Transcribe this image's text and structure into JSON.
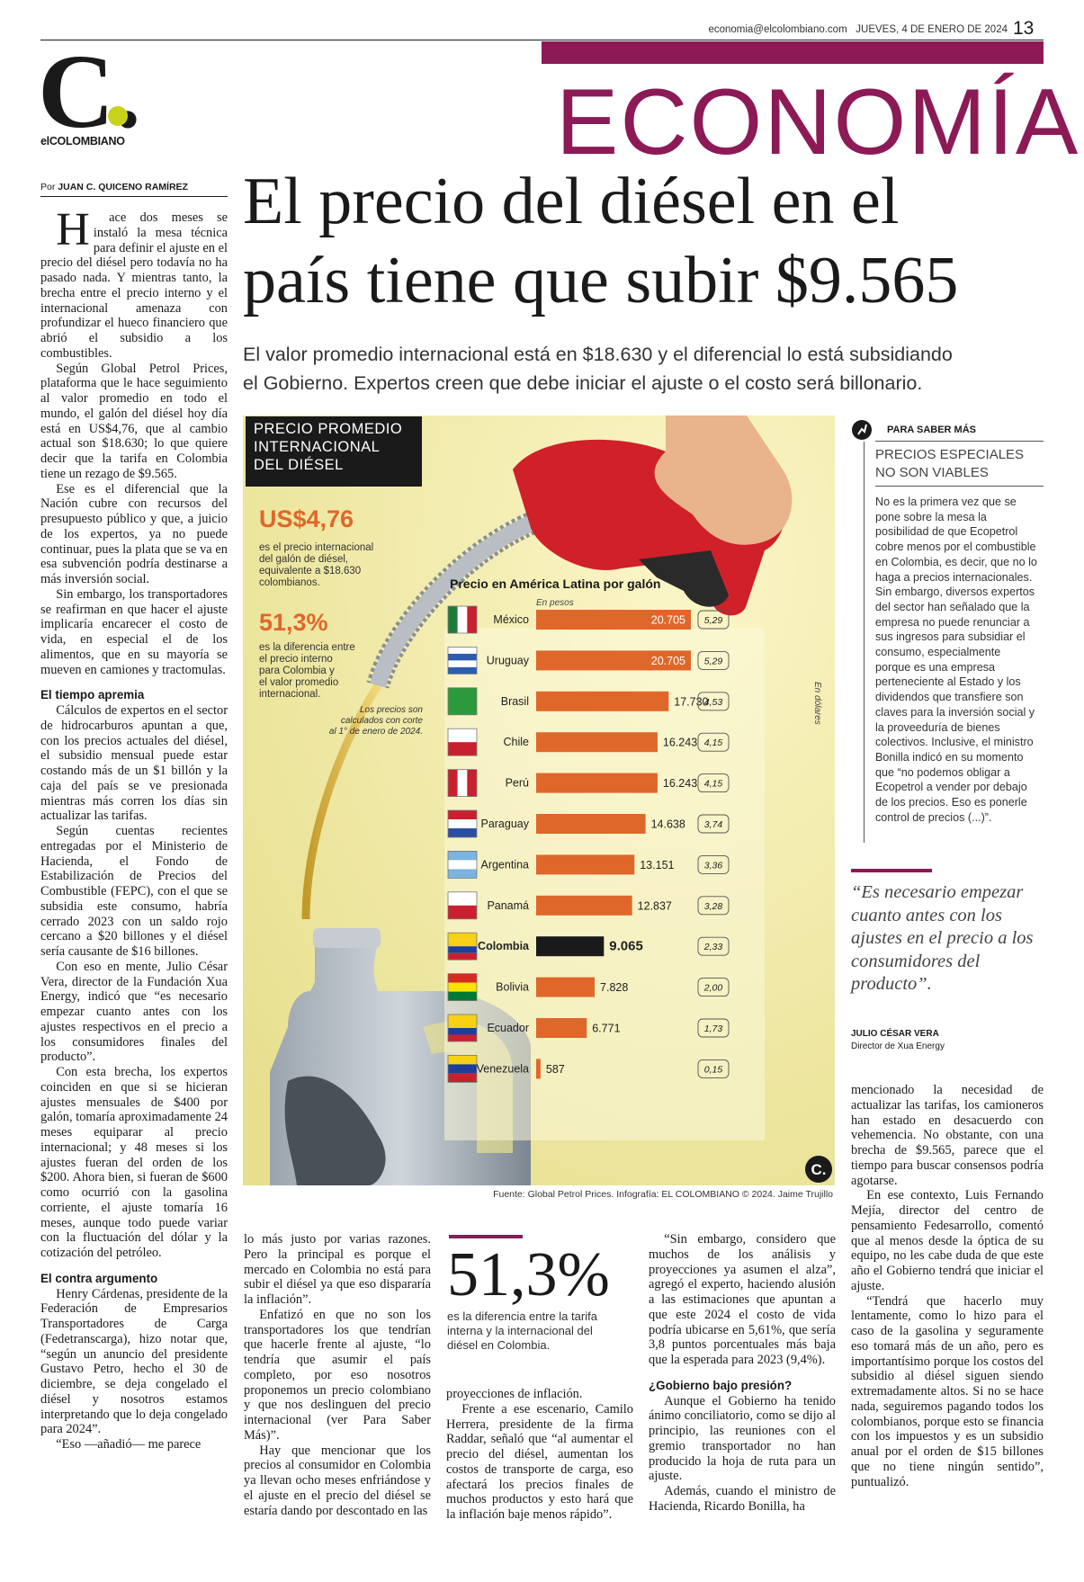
{
  "header": {
    "email": "economia@elcolombiano.com",
    "date": "JUEVES, 4 DE ENERO DE 2024",
    "page_number": "13",
    "logo": "C.",
    "brand": "elCOLOMBIANO",
    "section": "ECONOMÍA"
  },
  "byline": {
    "prefix": "Por",
    "author": "JUAN C. QUICENO RAMÍREZ"
  },
  "headline": [
    "El precio del diésel en el",
    "país tiene que subir $9.565"
  ],
  "subheadline": [
    "El valor promedio internacional está en $18.630 y el diferencial lo está subsidiando",
    "el Gobierno. Expertos creen que debe iniciar el ajuste o el costo será billonario."
  ],
  "infographic": {
    "title": [
      "PRECIO PROMEDIO",
      "INTERNACIONAL",
      "DEL DIÉSEL"
    ],
    "stat_1": "US$4,76",
    "stat_1_text": [
      "es el precio internacional",
      "del galón de diésel,",
      "equivalente a $18.630",
      "colombianos."
    ],
    "stat_2": "51,3%",
    "stat_2_text": [
      "es la diferencia entre",
      "el precio interno",
      "para Colombia y",
      "el valor promedio",
      "internacional."
    ],
    "note": [
      "Los precios son",
      "calculados con corte",
      "al 1° de enero de 2024."
    ],
    "logo": "C.",
    "source": "Fuente: Global Petrol Prices. Infografía: EL COLOMBIANO © 2024. Jaime Trujillo",
    "chart_data": {
      "type": "bar",
      "title": "Precio en América Latina por galón",
      "categories": [
        "México",
        "Uruguay",
        "Brasil",
        "Chile",
        "Perú",
        "Paraguay",
        "Argentina",
        "Panamá",
        "Colombia",
        "Bolivia",
        "Ecuador",
        "Venezuela"
      ],
      "series": [
        {
          "name": "En pesos",
          "color": "#e0672a",
          "colors": [
            "#e0672a",
            "#e0672a",
            "#e0672a",
            "#e0672a",
            "#e0672a",
            "#e0672a",
            "#e0672a",
            "#e0672a",
            "#1a1a1a",
            "#e0672a",
            "#e0672a",
            "#e0672a"
          ],
          "values": [
            20705,
            20705,
            17730,
            16243,
            16243,
            14638,
            13151,
            12837,
            9065,
            7828,
            6771,
            587
          ],
          "value_labels": [
            "20.705",
            "20.705",
            "17.730",
            "16.243",
            "16.243",
            "14.638",
            "13.151",
            "12.837",
            "9.065",
            "7.828",
            "6.771",
            "587"
          ]
        },
        {
          "name": "En dólares",
          "values": [
            5.29,
            5.29,
            4.53,
            4.15,
            4.15,
            3.74,
            3.36,
            3.28,
            2.33,
            2.0,
            1.73,
            0.15
          ],
          "value_labels": [
            "5,29",
            "5,29",
            "4,53",
            "4,15",
            "4,15",
            "3,74",
            "3,36",
            "3,28",
            "2,33",
            "2,00",
            "1,73",
            "0,15"
          ]
        }
      ]
    }
  },
  "sidebar": {
    "kicker": "PARA SABER MÁS",
    "title": [
      "PRECIOS ESPECIALES",
      "NO SON VIABLES"
    ],
    "text": "No es la primera vez que se pone sobre la mesa la posibilidad de que Ecopetrol cobre menos por el combustible en Colombia, es decir, que no lo haga a precios internacionales. Sin embargo, diversos expertos del sector han señalado que la empresa no puede renunciar a sus ingresos para subsidiar el consumo, especialmente porque es una empresa perteneciente al Estado y los dividendos que transfiere son claves para la inversión social y la proveeduría de bienes colectivos. Inclusive, el ministro Bonilla indicó en su momento que “no podemos obligar a Ecopetrol a vender por debajo de los precios. Eso es ponerle control de precios (...)”."
  },
  "quote": {
    "text": "“Es necesario empezar cuanto antes con los ajustes en el precio a los consumidores del producto”.",
    "author": "JULIO CÉSAR VERA",
    "role": "Director de Xua Energy"
  },
  "pull_stat": {
    "value": "51,3%",
    "text": "es la diferencia entre la tarifa interna y la internacional del diésel en Colombia."
  },
  "columns": [
    [
      {
        "text": "Hace dos meses se instaló la mesa técnica para definir el ajuste en el precio del diésel pero todavía no ha pasado nada. Y mientras tanto, la brecha entre el precio interno y el internacional amenaza con profundizar el hueco financiero que abrió el subsidio a los combustibles."
      },
      {
        "text": "Según Global Petrol Prices, plataforma que le hace seguimiento al valor promedio en todo el mundo, el galón del diésel hoy día está en US$4,76, que al cambio actual son $18.630; lo que quiere decir que la tarifa en Colombia tiene un rezago de $9.565."
      },
      {
        "text": "Ese es el diferencial que la Nación cubre con recursos del presupuesto público y que, a juicio de los expertos, ya no puede continuar, pues la plata que se va en esa subvención podría destinarse a más inversión social."
      },
      {
        "text": "Sin embargo, los transportadores se reafirman en que hacer el ajuste implicaría encarecer el costo de vida, en especial el de los alimentos, que en su mayoría se mueven en camiones y tractomulas."
      },
      {
        "subhead": "El tiempo apremia"
      },
      {
        "text": "Cálculos de expertos en el sector de hidrocarburos apuntan a que, con los precios actuales del diésel, el subsidio mensual puede estar costando más de un $1 billón y la caja del país se ve presionada mientras más corren los días sin actualizar las tarifas."
      },
      {
        "text": "Según cuentas recientes entregadas por el Ministerio de Hacienda, el Fondo de Estabilización de Precios del Combustible (FEPC), con el que se subsidia este consumo, habría cerrado 2023 con un saldo rojo cercano a $20 billones y el diésel sería causante de $16 billones."
      },
      {
        "text": "Con eso en mente, Julio César Vera, director de la Fundación Xua Energy, indicó que “es necesario empezar cuanto antes con los ajustes respectivos en el precio a los consumidores finales del producto”."
      },
      {
        "text": "Con esta brecha, los expertos coinciden en que si se hicieran ajustes mensuales de $400 por galón, tomaría aproximadamente 24 meses equiparar al precio internacional; y 48 meses si los ajustes fueran del orden de los $200. Ahora bien, si fueran de $600 como ocurrió con la gasolina corriente, el ajuste tomaría 16 meses, aunque todo puede variar con la fluctuación del dólar y la cotización del petróleo."
      },
      {
        "subhead": "El contra argumento"
      },
      {
        "text": "Henry Cárdenas, presidente de la Federación de Empresarios Transportadores de Carga (Fedetranscarga), hizo notar que, “según un anuncio del presidente Gustavo Petro, hecho el 30 de diciembre, se deja congelado el diésel y nosotros estamos interpretando que lo deja congelado para 2024”."
      },
      {
        "text": "“Eso —añadió— me parece"
      }
    ],
    [
      {
        "cont": "lo más justo por varias razones. Pero la principal es porque el mercado en Colombia no está para subir el diésel ya que eso dispararía la inflación”."
      },
      {
        "text": "Enfatizó en que no son los transportadores los que tendrían que hacerle frente al ajuste, “lo tendría que asumir el país completo, por eso nosotros proponemos un precio colombiano y que nos deslinguen del precio internacional (ver Para Saber Más)”."
      },
      {
        "text": "Hay que mencionar que los precios al consumidor en Colombia ya llevan ocho meses enfriándose y el ajuste en el precio del diésel se estaría dando por descontado en las"
      }
    ],
    [
      {
        "cont": "proyecciones de inflación."
      },
      {
        "text": "Frente a ese escenario, Camilo Herrera, presidente de la firma Raddar, señaló que “al aumentar el precio del diésel, aumentan los costos de transporte de carga, eso afectará los precios finales de muchos productos y esto hará que la inflación baje menos rápido”."
      }
    ],
    [
      {
        "text": "“Sin embargo, considero que muchos de los análisis y proyecciones ya asumen el alza”, agregó el experto, haciendo alusión a las estimaciones que apuntan a que este 2024 el costo de vida podría ubicarse en 5,61%, que sería 3,8 puntos porcentuales más baja que la esperada para 2023 (9,4%)."
      },
      {
        "subhead": "¿Gobierno bajo presión?"
      },
      {
        "text": "Aunque el Gobierno ha tenido ánimo conciliatorio, como se dijo al principio, las reuniones con el gremio transportador no han producido la hoja de ruta para un ajuste."
      },
      {
        "text": "Además, cuando el ministro de Hacienda, Ricardo Bonilla, ha"
      }
    ],
    [
      {
        "cont": "mencionado la necesidad de actualizar las tarifas, los camioneros han estado en desacuerdo con vehemencia. No obstante, con una brecha de $9.565, parece que el tiempo para buscar consensos podría agotarse."
      },
      {
        "text": "En ese contexto, Luis Fernando Mejía, director del centro de pensamiento Fedesarrollo, comentó que al menos desde la óptica de su equipo, no les cabe duda de que este año el Gobierno tendrá que iniciar el ajuste."
      },
      {
        "text": "“Tendrá que hacerlo muy lentamente, como lo hizo para el caso de la gasolina y seguramente eso tomará más de un año, pero es importantísimo porque los costos del subsidio al diésel siguen siendo extremadamente altos. Si no se hace nada, seguiremos pagando todos los colombianos, porque esto se financia con los impuestos y es un subsidio anual por el orden de $15 billones que no tiene ningún sentido”, puntualizó."
      }
    ]
  ]
}
